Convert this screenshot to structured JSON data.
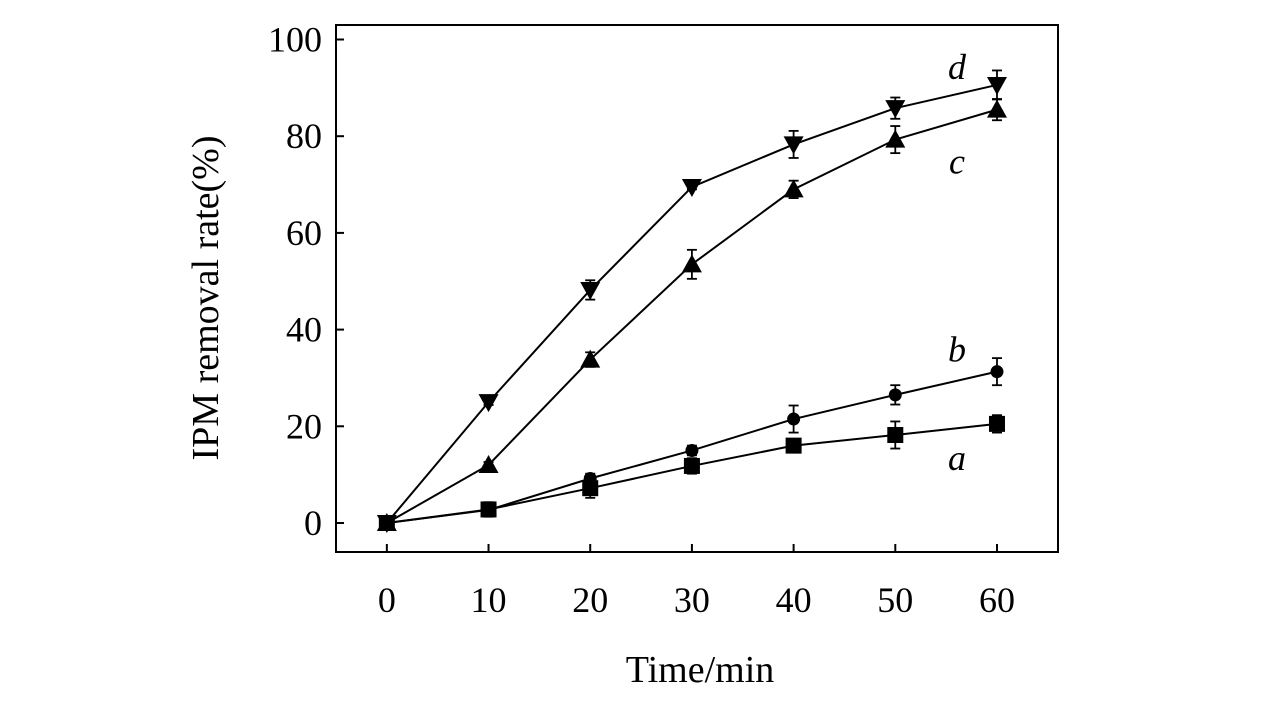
{
  "chart_data": {
    "type": "line",
    "title": "",
    "xlabel": "Time/min",
    "ylabel": "IPM removal rate(%)",
    "xlim": [
      -5,
      66
    ],
    "ylim": [
      -6,
      103
    ],
    "x": [
      0,
      10,
      20,
      30,
      40,
      50,
      60
    ],
    "xticks": [
      "0",
      "10",
      "20",
      "30",
      "40",
      "50",
      "60"
    ],
    "yticks": [
      "0",
      "20",
      "40",
      "60",
      "80",
      "100"
    ],
    "grid": false,
    "series": [
      {
        "name": "a",
        "marker": "square",
        "values": [
          0,
          2.8,
          7.2,
          11.8,
          16.0,
          18.2,
          20.5
        ],
        "errors": [
          0.8,
          1.5,
          2.0,
          1.6,
          0.8,
          2.8,
          1.8
        ]
      },
      {
        "name": "b",
        "marker": "circle",
        "values": [
          0,
          2.7,
          9.2,
          15.0,
          21.5,
          26.5,
          31.3
        ],
        "errors": [
          0.5,
          0.8,
          1.0,
          1.0,
          2.8,
          2.0,
          2.8
        ]
      },
      {
        "name": "c",
        "marker": "triangle-up",
        "values": [
          0,
          12.0,
          33.8,
          53.5,
          69.0,
          79.3,
          85.5
        ],
        "errors": [
          0.5,
          0.6,
          1.5,
          3.0,
          1.8,
          2.8,
          2.2
        ]
      },
      {
        "name": "d",
        "marker": "triangle-down",
        "values": [
          0,
          25.0,
          48.2,
          69.5,
          78.3,
          85.8,
          90.6
        ],
        "errors": [
          0.5,
          0.6,
          2.0,
          0.5,
          2.8,
          2.2,
          3.0
        ]
      }
    ]
  }
}
